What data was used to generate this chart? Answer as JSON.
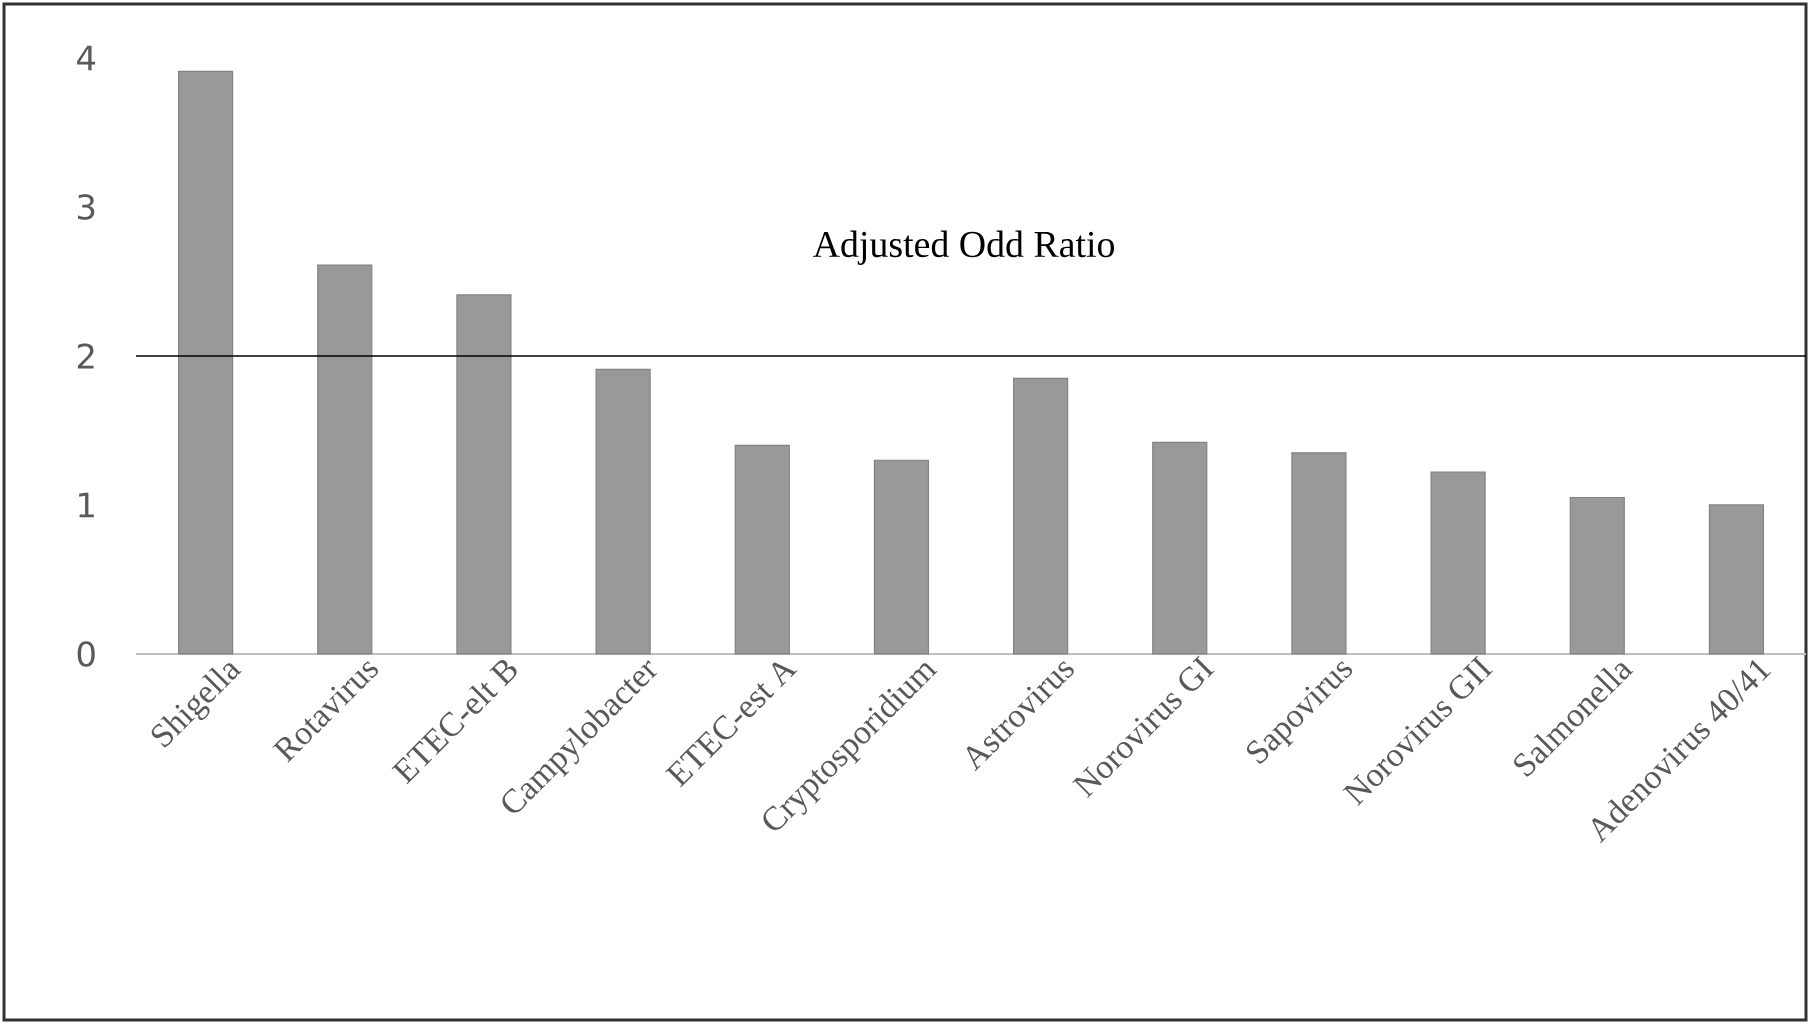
{
  "chart_data": {
    "type": "bar",
    "categories": [
      "Shigella",
      "Rotavirus",
      "ETEC-elt B",
      "Campylobacter",
      "ETEC-est A",
      "Cryptosporidium",
      "Astrovirus",
      "Norovirus GI",
      "Sapovirus",
      "Norovirus GII",
      "Salmonella",
      "Adenovirus 40/41"
    ],
    "values": [
      3.91,
      2.61,
      2.41,
      1.91,
      1.4,
      1.3,
      1.85,
      1.42,
      1.35,
      1.22,
      1.05,
      1.0
    ],
    "color": "#999999",
    "ylim": [
      0,
      4
    ],
    "yticks": [
      0,
      1,
      2,
      3,
      4
    ],
    "ref_lines": [
      {
        "axis": "y",
        "value": 2,
        "label": "Adjusted Odd Ratio",
        "color": "#000000"
      }
    ]
  }
}
